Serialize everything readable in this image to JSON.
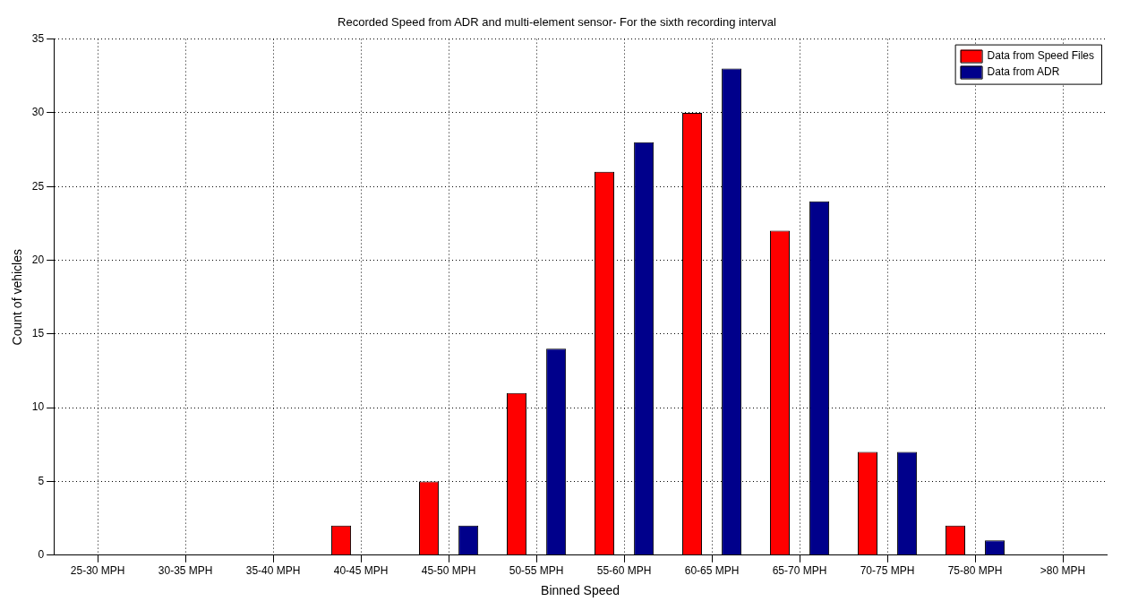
{
  "chart_data": {
    "type": "bar",
    "title": "Recorded Speed from ADR and multi-element sensor- For the sixth recording interval",
    "xlabel": "Binned Speed",
    "ylabel": "Count of vehicles",
    "categories": [
      "25-30 MPH",
      "30-35 MPH",
      "35-40 MPH",
      "40-45 MPH",
      "45-50 MPH",
      "50-55 MPH",
      "55-60 MPH",
      "60-65 MPH",
      "65-70 MPH",
      "70-75 MPH",
      "75-80 MPH",
      ">80 MPH"
    ],
    "series": [
      {
        "name": "Data from Speed Files",
        "color": "#ff0000",
        "values": [
          0,
          0,
          0,
          2,
          5,
          11,
          26,
          30,
          22,
          7,
          2,
          0
        ]
      },
      {
        "name": "Data from ADR",
        "color": "#00008b",
        "values": [
          0,
          0,
          0,
          0,
          2,
          14,
          28,
          33,
          24,
          7,
          1,
          0
        ]
      }
    ],
    "ylim": [
      0,
      35
    ],
    "yticks": [
      0,
      5,
      10,
      15,
      20,
      25,
      30,
      35
    ],
    "grid": true,
    "legend": "top right"
  }
}
